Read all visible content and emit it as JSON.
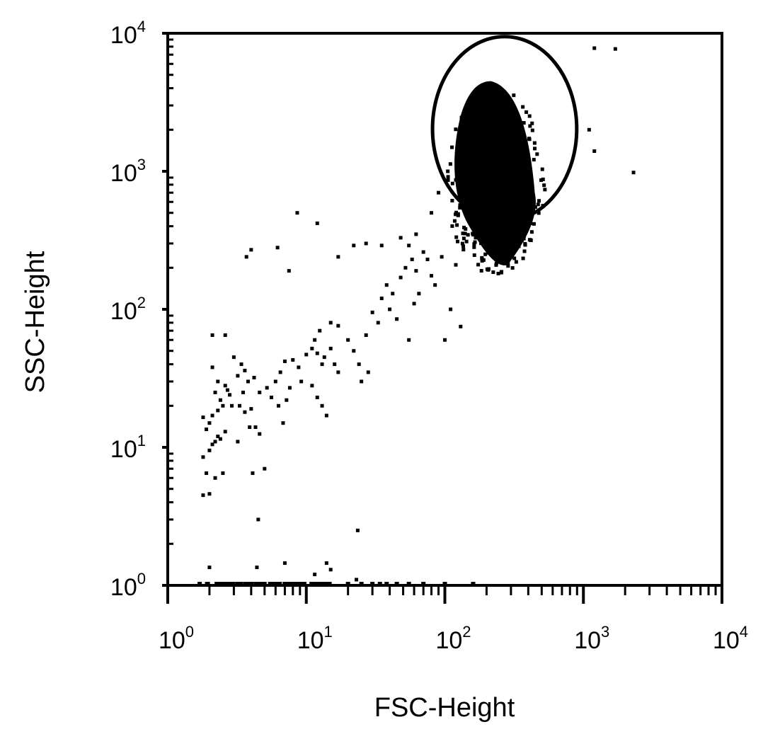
{
  "chart_data": {
    "type": "scatter",
    "title": "",
    "xlabel": "FSC-Height",
    "ylabel": "SSC-Height",
    "x_scale": "log",
    "y_scale": "log",
    "xlim": [
      1,
      10000
    ],
    "ylim": [
      1,
      10000
    ],
    "grid": false,
    "decades": [
      0,
      1,
      2,
      3,
      4
    ],
    "tick_base": "10",
    "x_tick_exponents": [
      "0",
      "1",
      "2",
      "3",
      "4"
    ],
    "y_tick_exponents": [
      "0",
      "1",
      "2",
      "3",
      "4"
    ],
    "colors": {
      "points": "#000000",
      "gate": "#000000",
      "frame": "#000000"
    },
    "scatter_points": [
      [
        1.8,
        4.5
      ],
      [
        2.0,
        4.6
      ],
      [
        1.9,
        6.5
      ],
      [
        2.2,
        6.0
      ],
      [
        2.5,
        6.5
      ],
      [
        1.8,
        8.5
      ],
      [
        2.0,
        9.5
      ],
      [
        2.1,
        10.5
      ],
      [
        2.2,
        11.0
      ],
      [
        2.3,
        12.0
      ],
      [
        2.4,
        11.5
      ],
      [
        2.6,
        13.0
      ],
      [
        1.9,
        13.5
      ],
      [
        2.0,
        15.0
      ],
      [
        1.8,
        16.5
      ],
      [
        2.1,
        17.0
      ],
      [
        2.3,
        18.5
      ],
      [
        2.5,
        20.0
      ],
      [
        2.4,
        22.0
      ],
      [
        2.2,
        25.0
      ],
      [
        2.7,
        26.0
      ],
      [
        2.6,
        28.0
      ],
      [
        2.3,
        30.0
      ],
      [
        2.8,
        24.0
      ],
      [
        2.9,
        20.0
      ],
      [
        2.1,
        38.0
      ],
      [
        2.1,
        65.0
      ],
      [
        2.6,
        65.0
      ],
      [
        3.0,
        45.0
      ],
      [
        3.4,
        40.0
      ],
      [
        3.2,
        33.0
      ],
      [
        3.6,
        36.0
      ],
      [
        3.8,
        30.0
      ],
      [
        4.2,
        32.0
      ],
      [
        3.5,
        25.0
      ],
      [
        3.3,
        20.0
      ],
      [
        3.6,
        18.0
      ],
      [
        4.0,
        19.0
      ],
      [
        3.9,
        14.0
      ],
      [
        4.3,
        14.0
      ],
      [
        3.2,
        11.0
      ],
      [
        4.6,
        12.5
      ],
      [
        4.1,
        6.5
      ],
      [
        5.0,
        7.0
      ],
      [
        4.6,
        25.0
      ],
      [
        5.2,
        27.0
      ],
      [
        5.6,
        23.0
      ],
      [
        6.0,
        30.0
      ],
      [
        6.3,
        20.0
      ],
      [
        6.8,
        15.0
      ],
      [
        7.2,
        22.0
      ],
      [
        6.5,
        35.0
      ],
      [
        7.0,
        42.0
      ],
      [
        8.0,
        43.0
      ],
      [
        8.8,
        38.0
      ],
      [
        7.6,
        27.0
      ],
      [
        9.2,
        30.0
      ],
      [
        10.0,
        47.0
      ],
      [
        11.0,
        52.0
      ],
      [
        12.0,
        48.0
      ],
      [
        13.0,
        40.0
      ],
      [
        13.5,
        45.0
      ],
      [
        15.0,
        52.0
      ],
      [
        16.0,
        40.0
      ],
      [
        17.0,
        35.0
      ],
      [
        11.0,
        28.0
      ],
      [
        12.0,
        23.0
      ],
      [
        13.0,
        20.0
      ],
      [
        14.0,
        17.0
      ],
      [
        11.5,
        60.0
      ],
      [
        12.5,
        70.0
      ],
      [
        15.0,
        80.0
      ],
      [
        17.0,
        76.0
      ],
      [
        20.0,
        60.0
      ],
      [
        22.0,
        50.0
      ],
      [
        24.0,
        40.0
      ],
      [
        27.0,
        65.0
      ],
      [
        30.0,
        95.0
      ],
      [
        33.0,
        80.0
      ],
      [
        35.0,
        120.0
      ],
      [
        38.0,
        150.0
      ],
      [
        42.0,
        130.0
      ],
      [
        48.0,
        170.0
      ],
      [
        52.0,
        200.0
      ],
      [
        58.0,
        230.0
      ],
      [
        62.0,
        190.0
      ],
      [
        70.0,
        260.0
      ],
      [
        75.0,
        230.0
      ],
      [
        80.0,
        175.0
      ],
      [
        85.0,
        150.0
      ],
      [
        95.0,
        240.0
      ],
      [
        100.0,
        60.0
      ],
      [
        110.0,
        100.0
      ],
      [
        120.0,
        210.0
      ],
      [
        130.0,
        75.0
      ],
      [
        40.0,
        100.0
      ],
      [
        45.0,
        85.0
      ],
      [
        55.0,
        60.0
      ],
      [
        60.0,
        110.0
      ],
      [
        65.0,
        130.0
      ],
      [
        25.0,
        30.0
      ],
      [
        28.0,
        35.0
      ],
      [
        3.7,
        240.0
      ],
      [
        4.0,
        270.0
      ],
      [
        6.2,
        280.0
      ],
      [
        7.5,
        190.0
      ],
      [
        8.6,
        500.0
      ],
      [
        12.0,
        420.0
      ],
      [
        17.0,
        240.0
      ],
      [
        22.0,
        290.0
      ],
      [
        27.0,
        300.0
      ],
      [
        35.0,
        290.0
      ],
      [
        48.0,
        330.0
      ],
      [
        55.0,
        290.0
      ],
      [
        62.0,
        350.0
      ],
      [
        80.0,
        500.0
      ],
      [
        90.0,
        700.0
      ],
      [
        105.0,
        1000.0
      ],
      [
        1100.0,
        2000.0
      ],
      [
        1200.0,
        1400.0
      ],
      [
        2300.0,
        980.0
      ],
      [
        1200.0,
        7800.0
      ],
      [
        1700.0,
        7700.0
      ],
      [
        4.5,
        3.0
      ],
      [
        23.5,
        2.5
      ],
      [
        2.0,
        1.35
      ],
      [
        4.4,
        1.35
      ],
      [
        7.0,
        1.45
      ],
      [
        11.5,
        1.2
      ],
      [
        14.0,
        1.45
      ],
      [
        23.0,
        1.1
      ],
      [
        15.0,
        1.3
      ]
    ]
  }
}
